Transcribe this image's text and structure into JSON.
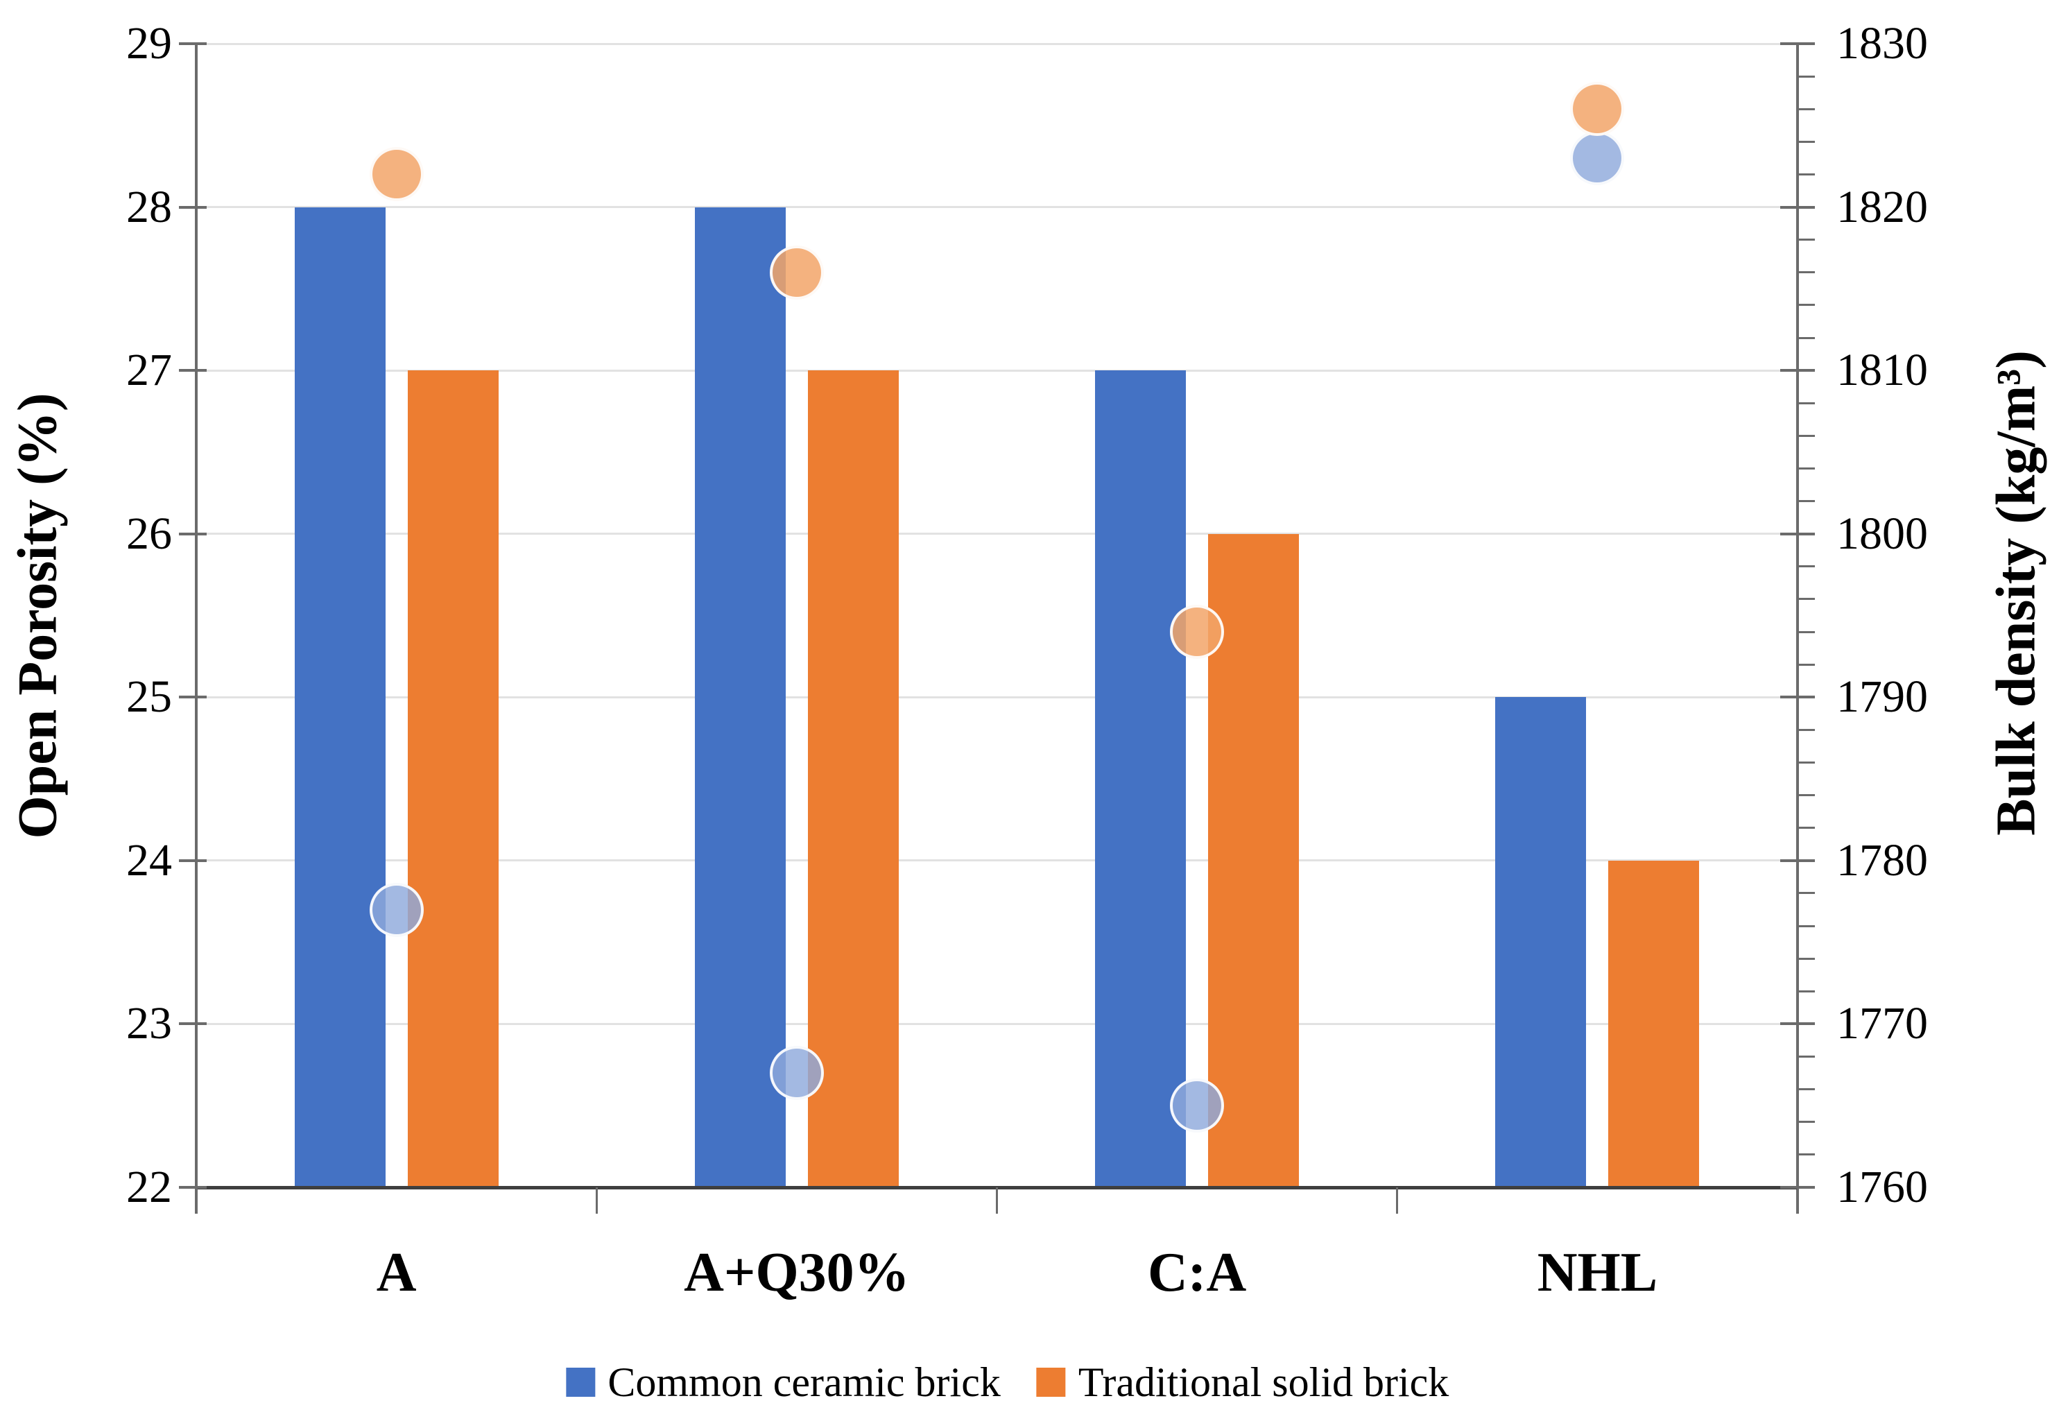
{
  "chart_data": {
    "type": "bar",
    "subtype": "dual-axis bar + scatter markers",
    "categories": [
      "A",
      "A+Q30%",
      "C:A",
      "NHL"
    ],
    "bar_series": [
      {
        "name": "Common ceramic brick",
        "color": "#4472C4",
        "axis": "left",
        "values": [
          28,
          28,
          27,
          25
        ]
      },
      {
        "name": "Traditional solid brick",
        "color": "#ED7D31",
        "axis": "left",
        "values": [
          27,
          27,
          26,
          24
        ]
      }
    ],
    "scatter_series": [
      {
        "name": "Common ceramic brick",
        "color": "rgba(143,170,220,0.82)",
        "axis": "right",
        "values": [
          1777,
          1767,
          1765,
          1823
        ]
      },
      {
        "name": "Traditional solid brick",
        "color": "rgba(242,164,105,0.85)",
        "axis": "right",
        "values": [
          1822,
          1816,
          1794,
          1826
        ]
      }
    ],
    "left_axis": {
      "label": "Open Porosity (%)",
      "min": 22,
      "max": 29,
      "tick_step": 1,
      "ticks": [
        22,
        23,
        24,
        25,
        26,
        27,
        28,
        29
      ]
    },
    "right_axis": {
      "label": "Bulk density (kg/m³)",
      "min": 1760,
      "max": 1830,
      "tick_step": 10,
      "minor_tick_step": 2,
      "ticks": [
        1760,
        1770,
        1780,
        1790,
        1800,
        1810,
        1820,
        1830
      ]
    },
    "grid": true,
    "legend_position": "bottom",
    "legend": [
      "Common ceramic brick",
      "Traditional solid brick"
    ]
  },
  "colors": {
    "bar_blue": "#4472C4",
    "bar_orange": "#ED7D31",
    "dot_blue_fill": "rgba(143,170,220,0.82)",
    "dot_orange_fill": "rgba(242,164,105,0.85)",
    "gridline": "#e2e2e2",
    "axis_side": "#6b6b6b",
    "axis_bottom": "#3f3f3f"
  }
}
